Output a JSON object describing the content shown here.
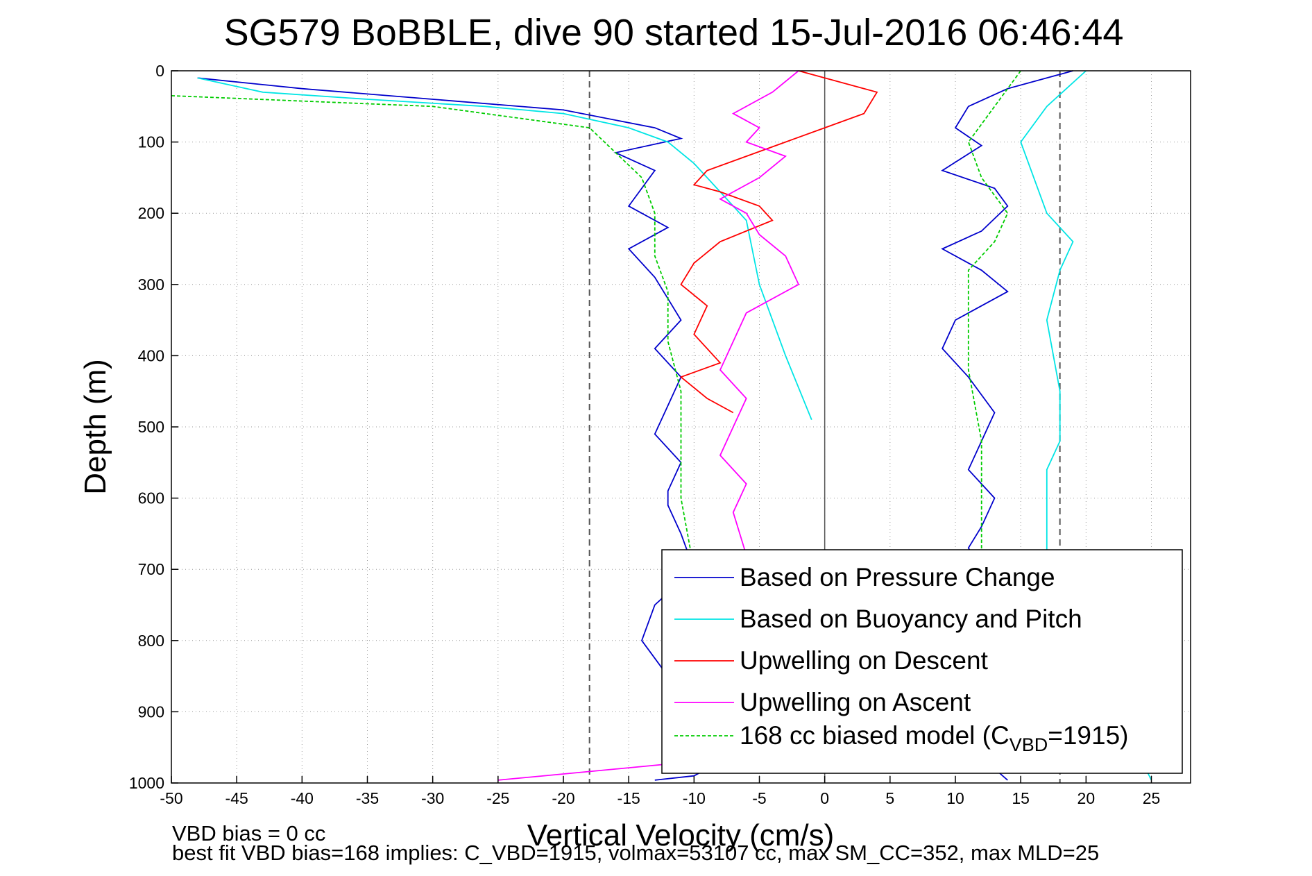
{
  "chart_data": {
    "type": "line",
    "title": "SG579 BoBBLE, dive 90 started 15-Jul-2016 06:46:44",
    "xlabel": "Vertical Velocity (cm/s)",
    "ylabel": "Depth (m)",
    "xlim": [
      -50,
      28
    ],
    "ylim": [
      0,
      1000
    ],
    "y_reversed": true,
    "grid": true,
    "xticks": [
      -50,
      -45,
      -40,
      -35,
      -30,
      -25,
      -20,
      -15,
      -10,
      -5,
      0,
      5,
      10,
      15,
      20,
      25
    ],
    "yticks": [
      0,
      100,
      200,
      300,
      400,
      500,
      600,
      700,
      800,
      900,
      1000
    ],
    "reference_lines": {
      "dashed_x": [
        -18,
        18
      ],
      "solid_x": [
        0
      ]
    },
    "legend_position": "lower-right",
    "legend": [
      {
        "label": "Based on Pressure Change",
        "color": "#0000cc"
      },
      {
        "label": "Based on Buoyancy and Pitch",
        "color": "#00e5e5"
      },
      {
        "label": "Upwelling on Descent",
        "color": "#ff0000"
      },
      {
        "label": "Upwelling on Ascent",
        "color": "#ff00ff"
      },
      {
        "label": "168 cc biased model (C",
        "sub": "VBD",
        "suffix": "=1915)",
        "color": "#00cc00"
      }
    ],
    "series": [
      {
        "name": "Based on Pressure Change",
        "color": "#0000cc",
        "x": [
          -48,
          -40,
          -30,
          -20,
          -13,
          -11,
          -16,
          -13,
          -15,
          -12,
          -15,
          -13,
          -12,
          -11,
          -13,
          -11,
          -12,
          -13,
          -11,
          -12,
          -12,
          -11,
          -10,
          -13,
          -14,
          -12,
          -11,
          -11,
          -9,
          -10,
          -13
        ],
        "y": [
          10,
          25,
          40,
          55,
          80,
          95,
          115,
          140,
          190,
          220,
          250,
          290,
          320,
          350,
          390,
          430,
          470,
          510,
          550,
          590,
          610,
          650,
          700,
          750,
          800,
          850,
          900,
          950,
          980,
          990,
          996
        ]
      },
      {
        "name": "Based on Pressure Change",
        "color": "#0000cc",
        "x": [
          19,
          14,
          11,
          10,
          12,
          9,
          13,
          14,
          12,
          9,
          12,
          14,
          10,
          9,
          11,
          13,
          12,
          11,
          13,
          12,
          11,
          12,
          13,
          12,
          11,
          13,
          14,
          13,
          14
        ],
        "y": [
          0,
          25,
          50,
          80,
          105,
          140,
          165,
          190,
          225,
          250,
          280,
          310,
          350,
          390,
          430,
          480,
          520,
          560,
          600,
          640,
          670,
          700,
          750,
          800,
          850,
          900,
          950,
          980,
          996
        ]
      },
      {
        "name": "Based on Buoyancy and Pitch",
        "color": "#00e5e5",
        "x": [
          -48,
          -43,
          -35,
          -26,
          -20,
          -15,
          -12,
          -10,
          -8,
          -6,
          -5,
          -3,
          -1
        ],
        "y": [
          10,
          30,
          40,
          50,
          60,
          80,
          100,
          130,
          170,
          210,
          300,
          400,
          490
        ]
      },
      {
        "name": "Based on Buoyancy and Pitch",
        "color": "#00e5e5",
        "x": [
          20,
          17,
          15,
          16,
          17,
          19,
          18,
          17,
          18,
          18,
          17,
          17,
          17,
          17,
          25
        ],
        "y": [
          0,
          50,
          100,
          150,
          200,
          240,
          280,
          350,
          450,
          520,
          560,
          600,
          650,
          700,
          996
        ]
      },
      {
        "name": "Upwelling on Descent",
        "color": "#ff0000",
        "x": [
          -2,
          4,
          3,
          0,
          -3,
          -6,
          -9,
          -10,
          -8,
          -5,
          -4,
          -8,
          -10,
          -11,
          -9,
          -10,
          -8,
          -11,
          -9,
          -7
        ],
        "y": [
          0,
          30,
          60,
          80,
          100,
          120,
          140,
          160,
          170,
          190,
          210,
          240,
          270,
          300,
          330,
          370,
          410,
          430,
          460,
          480
        ]
      },
      {
        "name": "Upwelling on Ascent",
        "color": "#ff00ff",
        "x": [
          -2,
          -4,
          -7,
          -5,
          -6,
          -3,
          -5,
          -8,
          -6,
          -5,
          -3,
          -2,
          -6,
          -7,
          -8,
          -6,
          -7,
          -8,
          -6,
          -7,
          -6,
          -5,
          -6,
          -10,
          -25
        ],
        "y": [
          0,
          30,
          60,
          80,
          100,
          120,
          150,
          180,
          200,
          230,
          260,
          300,
          340,
          380,
          420,
          460,
          500,
          540,
          580,
          620,
          680,
          750,
          850,
          970,
          996
        ]
      },
      {
        "name": "168 cc biased model (CVBD=1915)",
        "color": "#00cc00",
        "x": [
          -50,
          -30,
          -18,
          -14,
          -13,
          -13,
          -12,
          -12,
          -11,
          -11,
          -11,
          -10
        ],
        "y": [
          35,
          50,
          80,
          150,
          200,
          260,
          310,
          380,
          450,
          520,
          600,
          700
        ]
      },
      {
        "name": "168 cc biased model (CVBD=1915)",
        "color": "#00cc00",
        "x": [
          15,
          11,
          12,
          14,
          13,
          11,
          11,
          11,
          12,
          12
        ],
        "y": [
          0,
          100,
          150,
          200,
          240,
          280,
          340,
          420,
          520,
          700
        ]
      }
    ]
  },
  "footer": {
    "line1": "VBD bias = 0 cc",
    "line2": "best fit VBD bias=168 implies: C_VBD=1915, volmax=53107 cc, max SM_CC=352, max MLD=25"
  }
}
